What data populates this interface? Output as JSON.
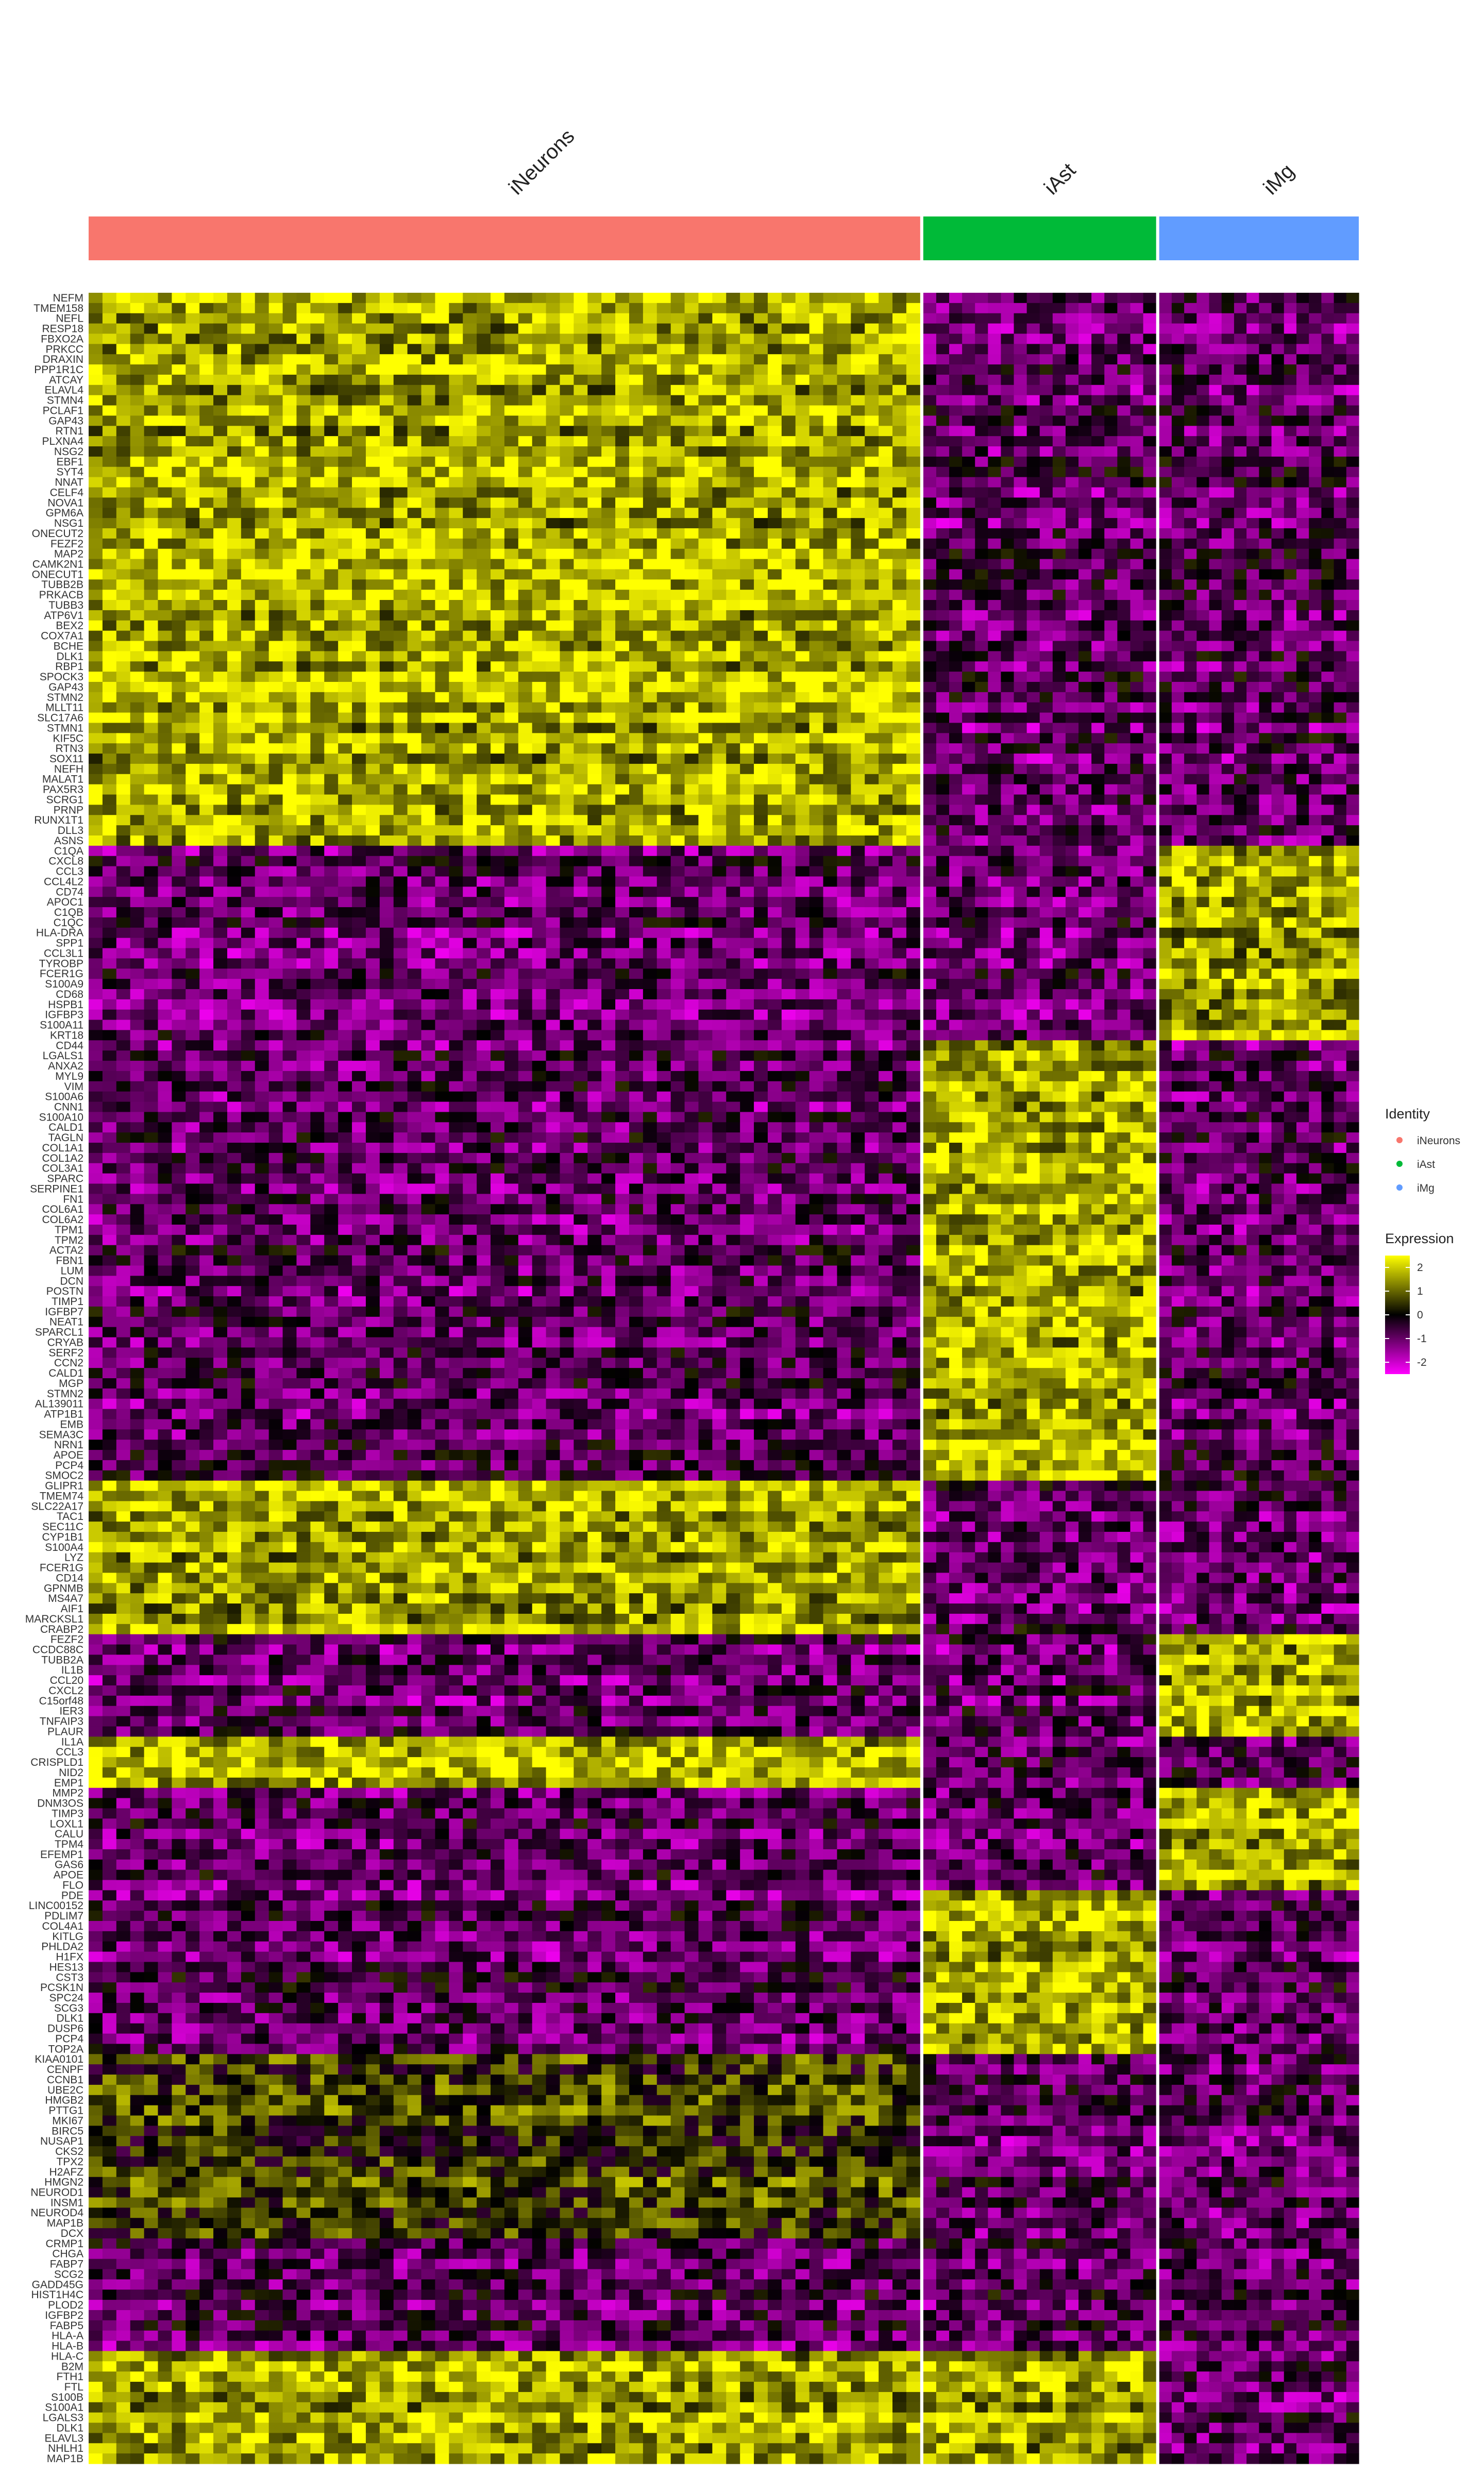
{
  "chart_data": {
    "type": "heatmap",
    "title": "",
    "groups": [
      {
        "name": "iNeurons",
        "color": "#F8766D",
        "cells": 1000
      },
      {
        "name": "iAst",
        "color": "#00BA38",
        "cells": 280
      },
      {
        "name": "iMg",
        "color": "#619CFF",
        "cells": 240
      }
    ],
    "legend_identity": {
      "title": "Identity",
      "entries": [
        {
          "label": "iNeurons",
          "color": "#F8766D"
        },
        {
          "label": "iAst",
          "color": "#00BA38"
        },
        {
          "label": "iMg",
          "color": "#619CFF"
        }
      ]
    },
    "legend_expression": {
      "title": "Expression",
      "ticks": [
        "2",
        "1",
        "0",
        "-1",
        "-2"
      ],
      "range": [
        -2.5,
        2.5
      ],
      "colors": [
        "#FF00FF",
        "#000000",
        "#FFFF00"
      ]
    },
    "genes": [
      "NEFM",
      "TMEM158",
      "NEFL",
      "RESP18",
      "FBXO2A",
      "PRKCC",
      "DRAXIN",
      "PPP1R1C",
      "ATCAY",
      "ELAVL4",
      "STMN4",
      "PCLAF1",
      "GAP43",
      "RTN1",
      "PLXNA4",
      "NSG2",
      "EBF1",
      "SYT4",
      "NNAT",
      "CELF4",
      "NOVA1",
      "GPM6A",
      "NSG1",
      "ONECUT2",
      "FEZF2",
      "MAP2",
      "CAMK2N1",
      "ONECUT1",
      "TUBB2B",
      "PRKACB",
      "TUBB3",
      "ATP6V1",
      "BEX2",
      "COX7A1",
      "BCHE",
      "DLK1",
      "RBP1",
      "SPOCK3",
      "GAP43",
      "STMN2",
      "MLLT11",
      "SLC17A6",
      "STMN1",
      "KIF5C",
      "RTN3",
      "SOX11",
      "NEFH",
      "MALAT1",
      "PAX5R3",
      "SCRG1",
      "PRNP",
      "RUNX1T1",
      "DLL3",
      "ASNS",
      "C1QA",
      "CXCL8",
      "CCL3",
      "CCL4L2",
      "CD74",
      "APOC1",
      "C1QB",
      "C1QC",
      "HLA-DRA",
      "SPP1",
      "CCL3L1",
      "TYROBP",
      "FCER1G",
      "S100A9",
      "CD68",
      "HSPB1",
      "IGFBP3",
      "S100A11",
      "KRT18",
      "CD44",
      "LGALS1",
      "ANXA2",
      "MYL9",
      "VIM",
      "S100A6",
      "CNN1",
      "S100A10",
      "CALD1",
      "TAGLN",
      "COL1A1",
      "COL1A2",
      "COL3A1",
      "SPARC",
      "SERPINE1",
      "FN1",
      "COL6A1",
      "COL6A2",
      "TPM1",
      "TPM2",
      "ACTA2",
      "FBN1",
      "LUM",
      "DCN",
      "POSTN",
      "TIMP1",
      "IGFBP7",
      "NEAT1",
      "SPARCL1",
      "CRYAB",
      "SERF2",
      "CCN2",
      "CALD1",
      "MGP",
      "STMN2",
      "AL139011",
      "ATP1B1",
      "EMB",
      "SEMA3C",
      "NRN1",
      "APOE",
      "PCP4",
      "SMOC2",
      "GLIPR1",
      "TMEM74",
      "SLC22A17",
      "TAC1",
      "SEC11C",
      "CYP1B1",
      "S100A4",
      "LYZ",
      "FCER1G",
      "CD14",
      "GPNMB",
      "MS4A7",
      "AIF1",
      "MARCKSL1",
      "CRABP2",
      "FEZF2",
      "CCDC88C",
      "TUBB2A",
      "IL1B",
      "CCL20",
      "CXCL2",
      "C15orf48",
      "IER3",
      "TNFAIP3",
      "PLAUR",
      "IL1A",
      "CCL3",
      "CRISPLD1",
      "NID2",
      "EMP1",
      "MMP2",
      "DNM3OS",
      "TIMP3",
      "LOXL1",
      "CALU",
      "TPM4",
      "EFEMP1",
      "GAS6",
      "APOE",
      "FLO",
      "PDE",
      "LINC00152",
      "PDLIM7",
      "COL4A1",
      "KITLG",
      "PHLDA2",
      "H1FX",
      "HES13",
      "CST3",
      "PCSK1N",
      "SPC24",
      "SCG3",
      "DLK1",
      "DUSP6",
      "PCP4",
      "TOP2A",
      "KIAA0101",
      "CENPF",
      "CCNB1",
      "UBE2C",
      "HMGB2",
      "PTTG1",
      "MKI67",
      "BIRC5",
      "NUSAP1",
      "CKS2",
      "TPX2",
      "H2AFZ",
      "HMGN2",
      "NEUROD1",
      "INSM1",
      "NEUROD4",
      "MAP1B",
      "DCX",
      "CRMP1",
      "CHGA",
      "FABP7",
      "SCG2",
      "GADD45G",
      "HIST1H4C",
      "PLOD2",
      "IGFBP2",
      "FABP5",
      "HLA-A",
      "HLA-B",
      "HLA-C",
      "B2M",
      "FTH1",
      "FTL",
      "S100B",
      "S100A1",
      "LGALS3",
      "DLK1",
      "ELAVL3",
      "NHLH1",
      "MAP1B"
    ],
    "expression_pattern": [
      {
        "rows": "1-54",
        "iNeurons": "high",
        "iAst": "low",
        "iMg": "low"
      },
      {
        "rows": "55-73",
        "iNeurons": "low",
        "iAst": "low",
        "iMg": "high"
      },
      {
        "rows": "74-116",
        "iNeurons": "low",
        "iAst": "high",
        "iMg": "low"
      },
      {
        "rows": "117-131",
        "iNeurons": "high",
        "iAst": "low",
        "iMg": "low"
      },
      {
        "rows": "132-141",
        "iNeurons": "low",
        "iAst": "low",
        "iMg": "high"
      },
      {
        "rows": "142-146",
        "iNeurons": "high",
        "iAst": "low",
        "iMg": "low"
      },
      {
        "rows": "147-156",
        "iNeurons": "low",
        "iAst": "low",
        "iMg": "high"
      },
      {
        "rows": "157-172",
        "iNeurons": "low",
        "iAst": "high",
        "iMg": "low"
      },
      {
        "rows": "173-190",
        "iNeurons": "mixed",
        "iAst": "low",
        "iMg": "low"
      },
      {
        "rows": "191-201",
        "iNeurons": "low",
        "iAst": "low",
        "iMg": "low"
      },
      {
        "rows": "202-217",
        "iNeurons": "high",
        "iAst": "high",
        "iMg": "low"
      },
      {
        "rows": "218-230",
        "iNeurons": "low",
        "iAst": "low",
        "iMg": "high"
      },
      {
        "rows": "231-236",
        "iNeurons": "high",
        "iAst": "low",
        "iMg": "low"
      }
    ]
  }
}
